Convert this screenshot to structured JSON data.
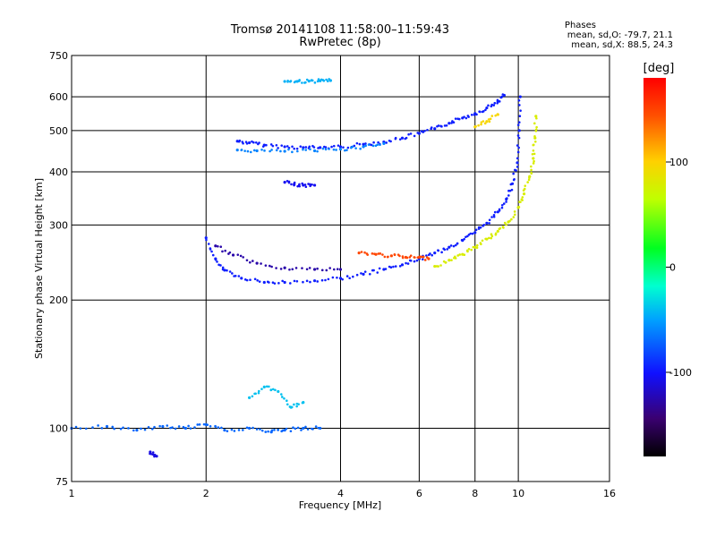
{
  "header": {
    "title_line1": "Tromsø 20141108 11:58:00–11:59:43",
    "title_line2": "RwPretec (8p)",
    "stats_heading": "Phases",
    "stats_o": "mean, sd,O: -79.7, 21.1",
    "stats_x": "mean, sd,X:  88.5, 24.3"
  },
  "chart_data": {
    "type": "scatter",
    "xlabel": "Frequency [MHz]",
    "ylabel": "Stationary phase Virtual Height [km]",
    "x_scale": "log",
    "y_scale": "log",
    "xlim": [
      1,
      16
    ],
    "ylim": [
      75,
      750
    ],
    "x_ticks": [
      1,
      2,
      4,
      6,
      8,
      10,
      16
    ],
    "y_ticks": [
      75,
      100,
      200,
      300,
      400,
      500,
      600,
      750
    ],
    "grid": "on",
    "colorbar": {
      "label": "[deg]",
      "range": [
        -180,
        180
      ],
      "ticks": [
        -100,
        0,
        100
      ],
      "colormap": "rainbow"
    },
    "series": [
      {
        "phase_deg": -95,
        "points": [
          [
            2.35,
            472
          ],
          [
            2.5,
            468
          ],
          [
            2.7,
            462
          ],
          [
            3.0,
            458
          ],
          [
            3.3,
            456
          ],
          [
            3.6,
            456
          ],
          [
            4.0,
            458
          ],
          [
            4.5,
            464
          ],
          [
            5.0,
            470
          ],
          [
            5.5,
            480
          ],
          [
            6.0,
            492
          ],
          [
            6.5,
            505
          ],
          [
            7.0,
            520
          ],
          [
            7.5,
            535
          ],
          [
            8.0,
            548
          ],
          [
            8.5,
            565
          ],
          [
            9.0,
            585
          ],
          [
            9.3,
            605
          ]
        ]
      },
      {
        "phase_deg": -60,
        "points": [
          [
            2.35,
            450
          ],
          [
            2.6,
            448
          ],
          [
            3.0,
            447
          ],
          [
            3.5,
            448
          ],
          [
            4.0,
            452
          ],
          [
            4.5,
            458
          ],
          [
            5.0,
            466
          ]
        ]
      },
      {
        "phase_deg": -45,
        "points": [
          [
            3.0,
            652
          ],
          [
            3.2,
            652
          ],
          [
            3.4,
            653
          ],
          [
            3.6,
            654
          ],
          [
            3.8,
            655
          ]
        ]
      },
      {
        "phase_deg": -105,
        "points": [
          [
            3.0,
            378
          ],
          [
            3.15,
            374
          ],
          [
            3.3,
            372
          ],
          [
            3.5,
            372
          ]
        ]
      },
      {
        "phase_deg": -95,
        "points": [
          [
            2.0,
            280
          ],
          [
            2.1,
            250
          ],
          [
            2.2,
            235
          ],
          [
            2.4,
            225
          ],
          [
            2.7,
            220
          ],
          [
            3.0,
            220
          ],
          [
            3.5,
            222
          ],
          [
            4.0,
            225
          ],
          [
            4.5,
            230
          ],
          [
            5.0,
            236
          ],
          [
            5.5,
            242
          ],
          [
            6.0,
            250
          ],
          [
            6.5,
            258
          ],
          [
            7.0,
            266
          ],
          [
            7.5,
            276
          ],
          [
            8.0,
            288
          ],
          [
            8.5,
            303
          ],
          [
            9.0,
            322
          ],
          [
            9.4,
            345
          ],
          [
            9.7,
            375
          ],
          [
            9.95,
            420
          ],
          [
            10.05,
            500
          ],
          [
            10.1,
            600
          ]
        ]
      },
      {
        "phase_deg": -130,
        "points": [
          [
            2.1,
            268
          ],
          [
            2.3,
            255
          ],
          [
            2.6,
            244
          ],
          [
            3.0,
            238
          ],
          [
            3.5,
            236
          ],
          [
            4.0,
            236
          ]
        ]
      },
      {
        "phase_deg": 145,
        "points": [
          [
            4.4,
            258
          ],
          [
            4.8,
            256
          ],
          [
            5.2,
            254
          ],
          [
            5.6,
            252
          ],
          [
            6.0,
            252
          ],
          [
            6.3,
            250
          ]
        ]
      },
      {
        "phase_deg": 75,
        "points": [
          [
            6.5,
            240
          ],
          [
            7.0,
            248
          ],
          [
            7.5,
            256
          ],
          [
            8.0,
            266
          ],
          [
            8.5,
            278
          ],
          [
            9.0,
            290
          ],
          [
            9.5,
            305
          ],
          [
            10.0,
            330
          ],
          [
            10.3,
            355
          ],
          [
            10.6,
            390
          ],
          [
            10.8,
            430
          ],
          [
            10.9,
            480
          ],
          [
            10.95,
            540
          ]
        ]
      },
      {
        "phase_deg": 95,
        "points": [
          [
            8.0,
            510
          ],
          [
            8.5,
            525
          ],
          [
            9.0,
            545
          ]
        ]
      },
      {
        "phase_deg": -70,
        "points": [
          [
            1.0,
            100
          ],
          [
            1.2,
            101
          ],
          [
            1.4,
            99
          ],
          [
            1.6,
            101
          ],
          [
            1.8,
            100
          ],
          [
            2.0,
            102
          ],
          [
            2.2,
            99
          ],
          [
            2.5,
            100
          ],
          [
            2.8,
            98
          ],
          [
            3.0,
            99
          ],
          [
            3.3,
            100
          ],
          [
            3.6,
            100
          ]
        ]
      },
      {
        "phase_deg": -40,
        "points": [
          [
            2.5,
            118
          ],
          [
            2.7,
            125
          ],
          [
            2.9,
            122
          ],
          [
            3.1,
            112
          ],
          [
            3.3,
            115
          ]
        ]
      },
      {
        "phase_deg": -110,
        "points": [
          [
            1.5,
            88
          ],
          [
            1.55,
            86
          ]
        ]
      }
    ]
  }
}
